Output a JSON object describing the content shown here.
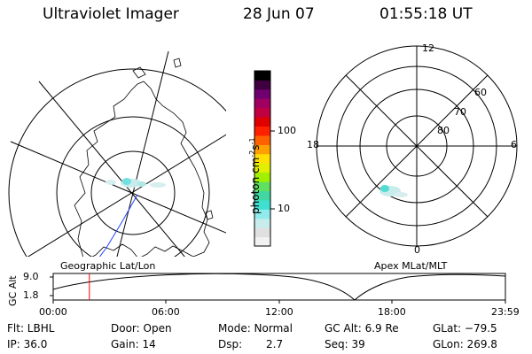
{
  "header": {
    "instrument": "Ultraviolet Imager",
    "date": "28 Jun 07",
    "time": "01:55:18 UT"
  },
  "geo_panel": {
    "label": "Geographic Lat/Lon"
  },
  "apex_panel": {
    "label": "Apex MLat/MLT",
    "mlt_labels": {
      "top": "12",
      "left": "18",
      "right": "6",
      "bottom": "0"
    },
    "lat_labels": [
      "60",
      "70",
      "80"
    ]
  },
  "colorbar": {
    "unit_label": "photon cm",
    "unit_sup1": "-2",
    "unit_mid": "s",
    "unit_sup2": "-1",
    "tick_100": "100",
    "tick_10": "10",
    "colors": [
      "#f2f2f2",
      "#e0e0e0",
      "#c8ecec",
      "#90ecec",
      "#40e0d0",
      "#40d8a0",
      "#60e060",
      "#a0f000",
      "#e0f000",
      "#ffe000",
      "#ffa000",
      "#ff6000",
      "#ff2000",
      "#e00000",
      "#c00040",
      "#a00060",
      "#700070",
      "#400040",
      "#000000"
    ]
  },
  "altplot": {
    "ylabel": "GC Alt",
    "y_top": "9.0",
    "y_bot": "1.8",
    "x_ticks": [
      "00:00",
      "06:00",
      "12:00",
      "18:00",
      "23:59"
    ],
    "current_time_fraction": 0.08
  },
  "info": {
    "filter": "Flt: LBHL",
    "ip": "IP: 36.0",
    "door": "Door: Open",
    "gain": "Gain: 14",
    "mode": "Mode: Normal",
    "dsp_label": "Dsp:",
    "dsp_value": "2.7",
    "gc_alt": "GC Alt: 6.9 Re",
    "seq": "Seq: 39",
    "glat": "GLat: −79.5",
    "glon": "GLon: 269.8"
  }
}
